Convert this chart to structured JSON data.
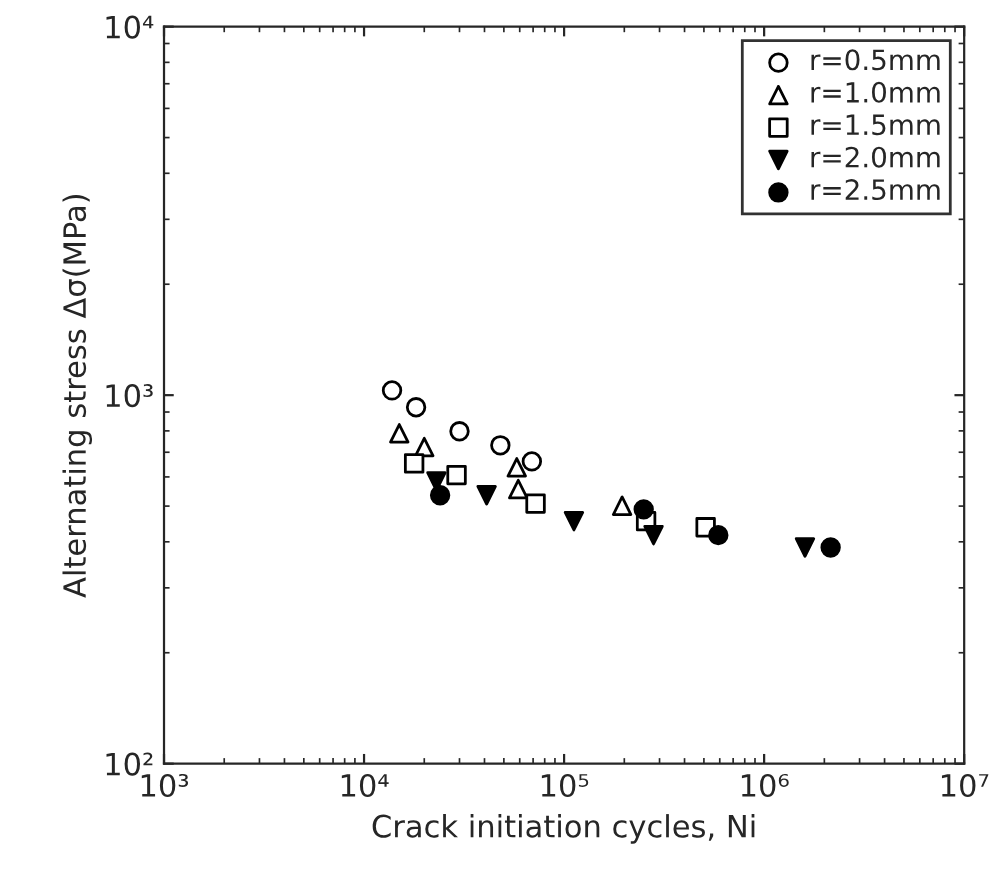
{
  "chart_data": {
    "type": "scatter",
    "xlabel": "Crack initiation cycles, Ni",
    "ylabel": "Alternating stress Δσ(MPa)",
    "log": "xy",
    "grid": false,
    "legend": "top right",
    "xlim": [
      1000,
      10000000
    ],
    "ylim": [
      100,
      10000
    ],
    "xticks": [
      {
        "value": 1000,
        "label": "10³"
      },
      {
        "value": 10000,
        "label": "10⁴"
      },
      {
        "value": 100000,
        "label": "10⁵"
      },
      {
        "value": 1000000,
        "label": "10⁶"
      },
      {
        "value": 10000000,
        "label": "10⁷"
      }
    ],
    "yticks": [
      {
        "value": 100,
        "label": "10²"
      },
      {
        "value": 1000,
        "label": "10³"
      },
      {
        "value": 10000,
        "label": "10⁴"
      }
    ],
    "series": [
      {
        "name": "r=0.5mm",
        "color": "#000000",
        "marker": "circle-open",
        "x": [
          13800,
          18200,
          30000,
          48000,
          69000
        ],
        "values": [
          1030,
          927,
          798,
          731,
          661
        ]
      },
      {
        "name": "r=1.0mm",
        "color": "#000000",
        "marker": "triangle-open",
        "x": [
          15000,
          20000,
          58000,
          59000,
          195000
        ],
        "values": [
          788,
          723,
          637,
          556,
          501
        ]
      },
      {
        "name": "r=1.5mm",
        "color": "#000000",
        "marker": "square-open",
        "x": [
          17800,
          29000,
          72000,
          257000,
          510000
        ],
        "values": [
          653,
          607,
          508,
          455,
          438
        ]
      },
      {
        "name": "r=2.0mm",
        "color": "#000000",
        "marker": "triangle_down",
        "x": [
          23000,
          41000,
          112000,
          280000,
          1600000
        ],
        "values": [
          583,
          535,
          455,
          417,
          386
        ]
      },
      {
        "name": "r=2.5mm",
        "color": "#000000",
        "marker": "circle",
        "x": [
          24000,
          250000,
          590000,
          2150000
        ],
        "values": [
          535,
          490,
          417,
          386
        ]
      }
    ]
  }
}
